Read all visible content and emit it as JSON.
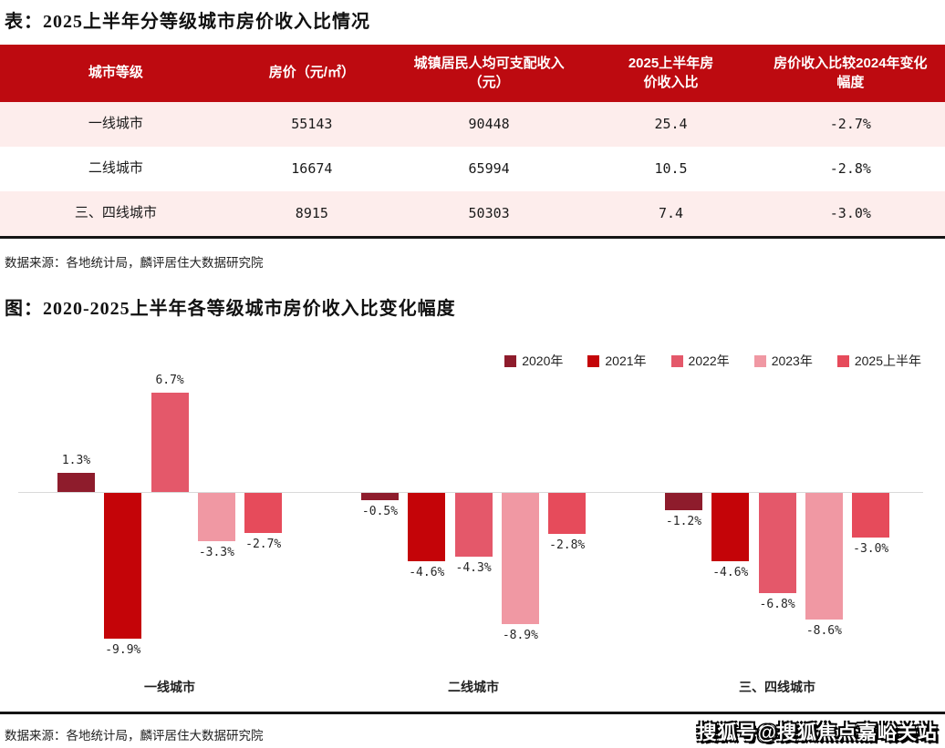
{
  "table_section": {
    "title": "表：2025上半年分等级城市房价收入比情况",
    "columns": [
      "城市等级",
      "房价（元/㎡）",
      "城镇居民人均可支配收入（元）",
      "2025上半年房价收入比",
      "房价收入比较2024年变化幅度"
    ],
    "rows": [
      [
        "一线城市",
        "55143",
        "90448",
        "25.4",
        "-2.7%"
      ],
      [
        "二线城市",
        "16674",
        "65994",
        "10.5",
        "-2.8%"
      ],
      [
        "三、四线城市",
        "8915",
        "50303",
        "7.4",
        "-3.0%"
      ]
    ],
    "source": "数据来源：各地统计局，麟评居住大数据研究院"
  },
  "chart_section": {
    "title": "图：2020-2025上半年各等级城市房价收入比变化幅度",
    "source": "数据来源：各地统计局，麟评居住大数据研究院"
  },
  "chart_data": {
    "type": "bar",
    "title": "图：2020-2025上半年各等级城市房价收入比变化幅度",
    "categories": [
      "一线城市",
      "二线城市",
      "三、四线城市"
    ],
    "series": [
      {
        "name": "2020年",
        "color": "#8E1C2C",
        "values": [
          1.3,
          -0.5,
          -1.2
        ]
      },
      {
        "name": "2021年",
        "color": "#C40408",
        "values": [
          -9.9,
          -4.6,
          -4.6
        ]
      },
      {
        "name": "2022年",
        "color": "#E4586A",
        "values": [
          6.7,
          -4.3,
          -6.8
        ]
      },
      {
        "name": "2023年",
        "color": "#F098A3",
        "values": [
          -3.3,
          -8.9,
          -8.6
        ]
      },
      {
        "name": "2025上半年",
        "color": "#E64B5B",
        "values": [
          -2.7,
          -2.8,
          -3.0
        ]
      }
    ],
    "unit": "%",
    "ylim": [
      -10.5,
      7.5
    ],
    "grid": false,
    "legend_position": "top-right"
  },
  "watermark": "搜狐号@搜狐焦点嘉峪关站",
  "colors": {
    "header_red": "#BD0A10",
    "row_pink": "#FDEDEC",
    "zero_line": "#D9D9D9",
    "divider": "#141414"
  }
}
